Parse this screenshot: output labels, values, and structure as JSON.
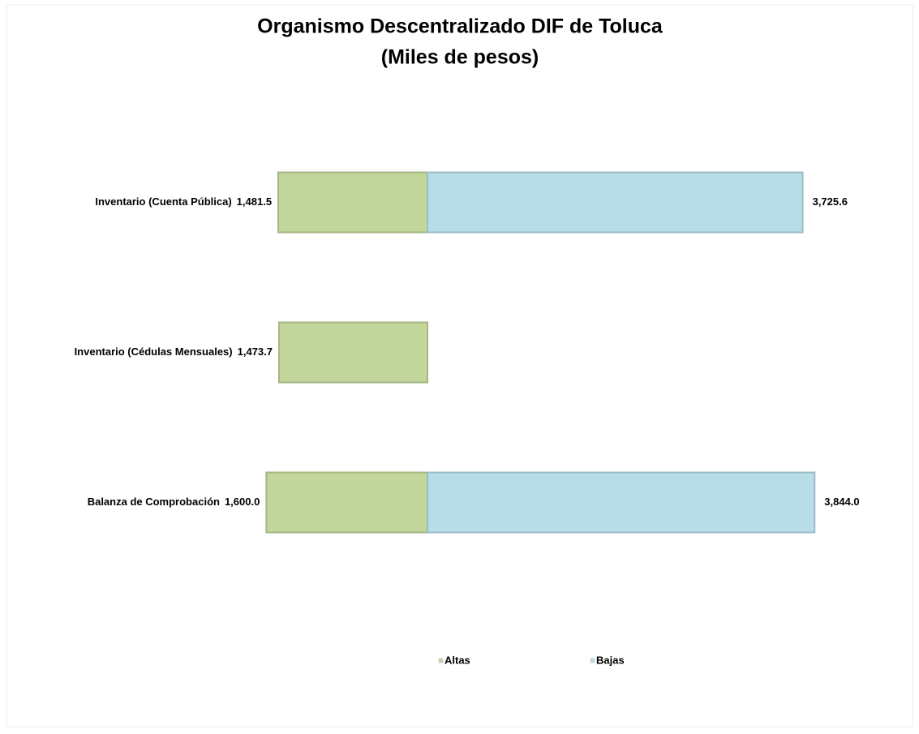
{
  "chart_data": {
    "type": "bar",
    "orientation": "horizontal",
    "diverging": true,
    "title": "Organismo Descentralizado DIF de Toluca",
    "subtitle": "(Miles de pesos)",
    "categories": [
      "Inventario (Cuenta Pública)",
      "Inventario (Cédulas Mensuales)",
      "Balanza de Comprobación"
    ],
    "series": [
      {
        "name": "Altas",
        "color": "#c3d69b",
        "values": [
          1481.5,
          1473.7,
          1600.0
        ],
        "value_labels": [
          "1,481.5",
          "1,473.7",
          "1,600.0"
        ]
      },
      {
        "name": "Bajas",
        "color": "#b7dde8",
        "values": [
          3725.6,
          null,
          3844.0
        ],
        "value_labels": [
          "3,725.6",
          null,
          "3,844.0"
        ]
      }
    ],
    "xlim": [
      -4200,
      4200
    ],
    "grid": false,
    "legend": "bottom"
  }
}
